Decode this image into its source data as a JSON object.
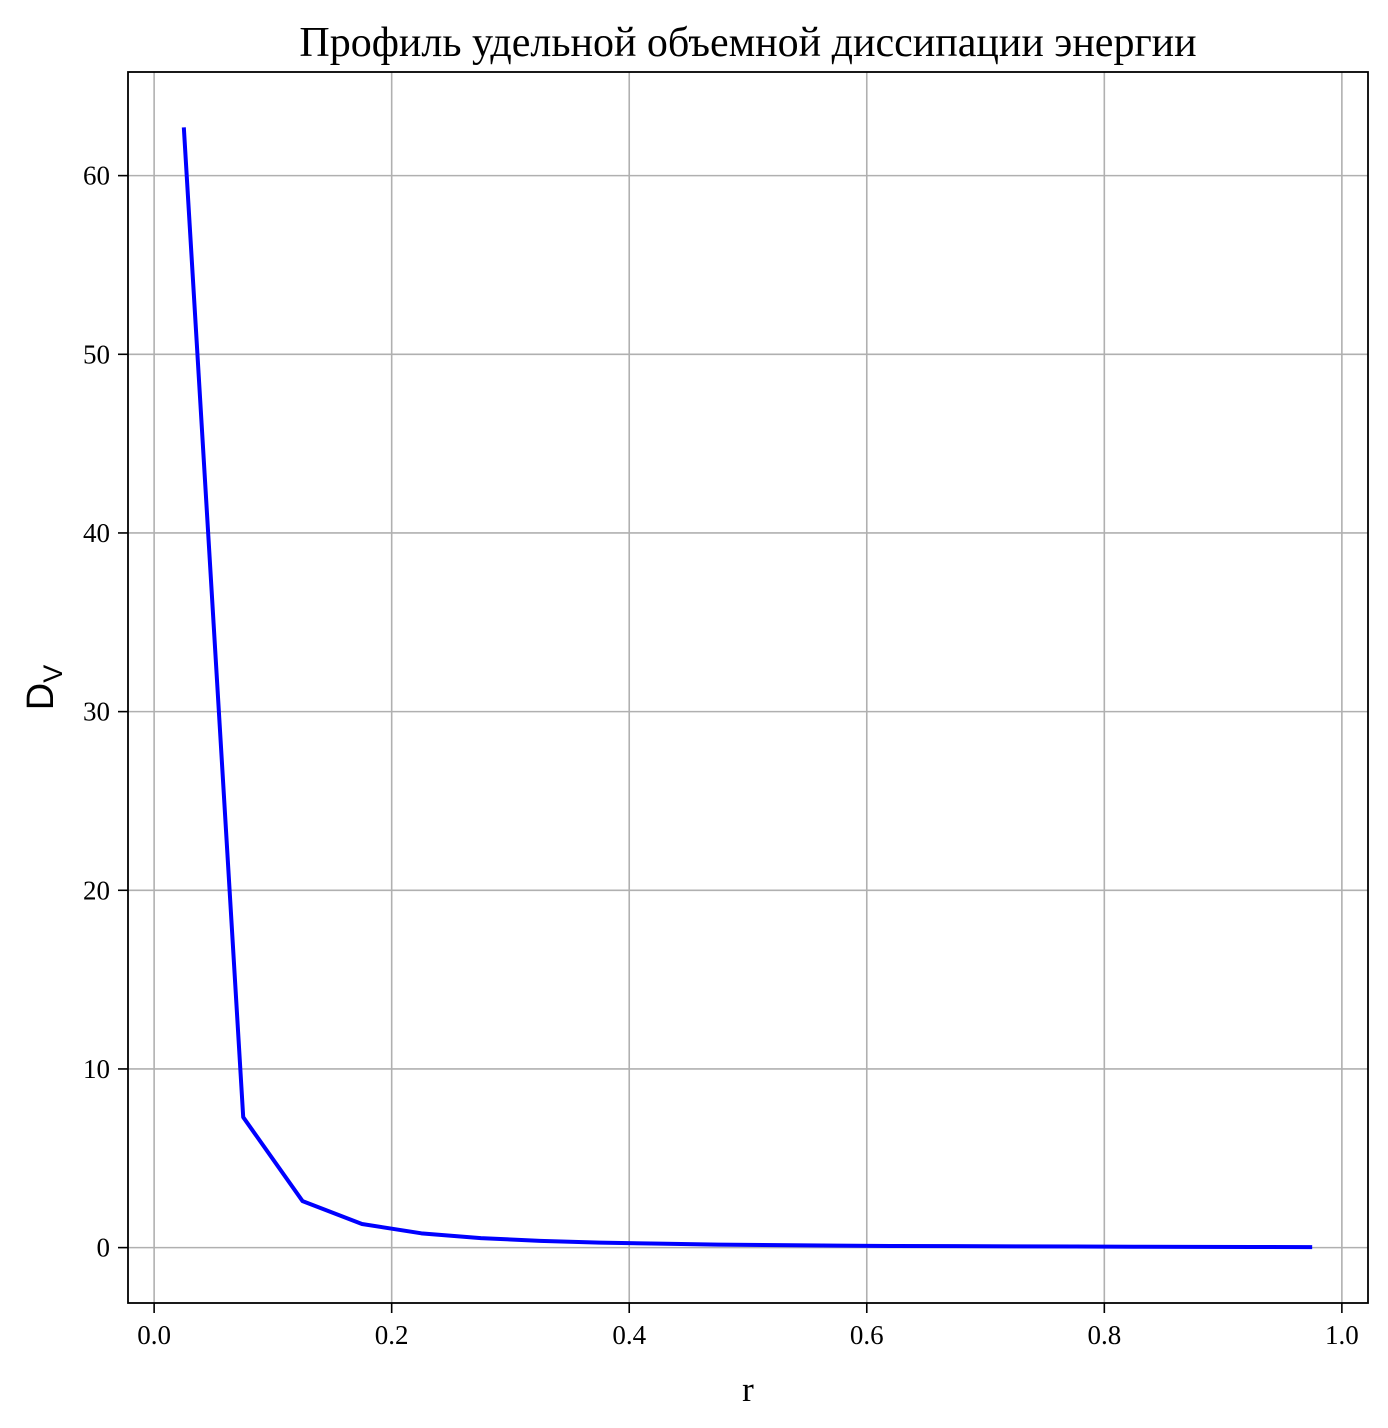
{
  "chart_data": {
    "type": "line",
    "title": "Профиль удельной объемной диссипации энергии",
    "xlabel": "r",
    "ylabel": {
      "main": "D",
      "subscript": "V"
    },
    "xlim": [
      -0.022,
      1.022
    ],
    "ylim": [
      -3.1,
      65.8
    ],
    "grid": true,
    "x_ticks": [
      {
        "value": 0.0,
        "label": "0.0"
      },
      {
        "value": 0.2,
        "label": "0.2"
      },
      {
        "value": 0.4,
        "label": "0.4"
      },
      {
        "value": 0.6,
        "label": "0.6"
      },
      {
        "value": 0.8,
        "label": "0.8"
      },
      {
        "value": 1.0,
        "label": "1.0"
      }
    ],
    "y_ticks": [
      {
        "value": 0,
        "label": "0"
      },
      {
        "value": 10,
        "label": "10"
      },
      {
        "value": 20,
        "label": "20"
      },
      {
        "value": 30,
        "label": "30"
      },
      {
        "value": 40,
        "label": "40"
      },
      {
        "value": 50,
        "label": "50"
      },
      {
        "value": 60,
        "label": "60"
      }
    ],
    "series": [
      {
        "color": "#0000ff",
        "x": [
          0.025,
          0.075,
          0.125,
          0.175,
          0.225,
          0.275,
          0.325,
          0.375,
          0.425,
          0.475,
          0.525,
          0.575,
          0.625,
          0.675,
          0.725,
          0.775,
          0.825,
          0.875,
          0.925,
          0.975
        ],
        "y": [
          62.7,
          7.3,
          2.6,
          1.32,
          0.8,
          0.53,
          0.38,
          0.28,
          0.22,
          0.17,
          0.14,
          0.11,
          0.09,
          0.08,
          0.07,
          0.06,
          0.05,
          0.04,
          0.035,
          0.03
        ]
      }
    ],
    "colors": {
      "line": "#0000ff",
      "grid": "#b0b0b0",
      "axes": "#000000"
    }
  }
}
